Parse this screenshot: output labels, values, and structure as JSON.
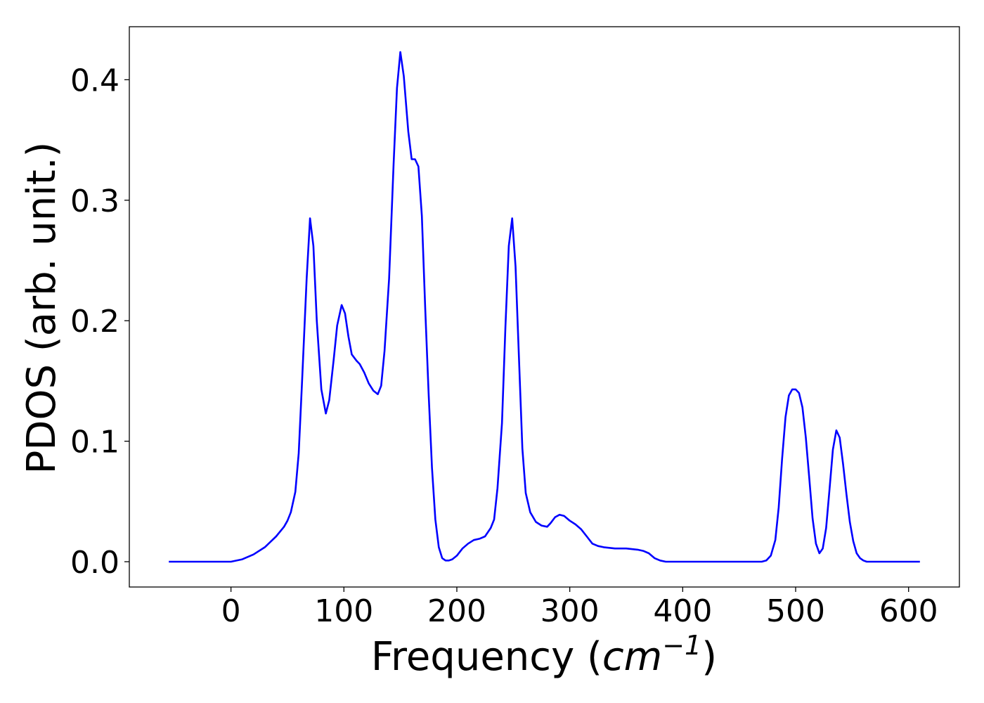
{
  "chart_data": {
    "type": "line",
    "xlabel": "Frequency",
    "xlabel_unit": "cm",
    "xlabel_unit_exponent": "−1",
    "ylabel": "PDOS (arb. unit.)",
    "xlim": [
      -90,
      645
    ],
    "ylim": [
      -0.021,
      0.444
    ],
    "xticks": [
      0,
      100,
      200,
      300,
      400,
      500,
      600
    ],
    "xtick_labels": [
      "0",
      "100",
      "200",
      "300",
      "400",
      "500",
      "600"
    ],
    "yticks": [
      0.0,
      0.1,
      0.2,
      0.3,
      0.4
    ],
    "ytick_labels": [
      "0.0",
      "0.1",
      "0.2",
      "0.3",
      "0.4"
    ],
    "grid": false,
    "series": [
      {
        "color": "#0000ff",
        "x": [
          -55,
          -30,
          0,
          10,
          20,
          30,
          40,
          47,
          50,
          53,
          57,
          60,
          63,
          67,
          70,
          73,
          76,
          80,
          84,
          87,
          91,
          94,
          98,
          101,
          104,
          107,
          111,
          114,
          118,
          122,
          126,
          130,
          133,
          136,
          140,
          144,
          147,
          150,
          153,
          157,
          160,
          163,
          166,
          169,
          172,
          175,
          178,
          181,
          184,
          187,
          190,
          193,
          196,
          200,
          205,
          210,
          215,
          220,
          225,
          230,
          233,
          236,
          240,
          243,
          246,
          249,
          252,
          255,
          258,
          261,
          265,
          270,
          275,
          280,
          283,
          287,
          291,
          295,
          300,
          305,
          310,
          315,
          320,
          325,
          330,
          340,
          350,
          360,
          365,
          370,
          375,
          380,
          385,
          390,
          400,
          450,
          470,
          474,
          478,
          482,
          485,
          488,
          491,
          494,
          497,
          500,
          503,
          506,
          509,
          512,
          515,
          518,
          521,
          524,
          527,
          530,
          533,
          536,
          539,
          542,
          545,
          548,
          551,
          554,
          557,
          560,
          563,
          567,
          575,
          610
        ],
        "y": [
          0.0,
          0.0,
          0.0,
          0.002,
          0.006,
          0.012,
          0.021,
          0.029,
          0.034,
          0.041,
          0.058,
          0.09,
          0.15,
          0.235,
          0.285,
          0.262,
          0.2,
          0.143,
          0.123,
          0.134,
          0.168,
          0.196,
          0.213,
          0.206,
          0.187,
          0.172,
          0.167,
          0.164,
          0.157,
          0.148,
          0.142,
          0.139,
          0.146,
          0.175,
          0.235,
          0.33,
          0.393,
          0.423,
          0.403,
          0.357,
          0.334,
          0.334,
          0.328,
          0.287,
          0.21,
          0.14,
          0.078,
          0.035,
          0.012,
          0.003,
          0.001,
          0.001,
          0.002,
          0.005,
          0.011,
          0.015,
          0.018,
          0.019,
          0.021,
          0.028,
          0.035,
          0.061,
          0.115,
          0.195,
          0.262,
          0.285,
          0.245,
          0.17,
          0.094,
          0.057,
          0.041,
          0.033,
          0.03,
          0.029,
          0.032,
          0.037,
          0.039,
          0.038,
          0.034,
          0.031,
          0.027,
          0.021,
          0.015,
          0.013,
          0.012,
          0.011,
          0.011,
          0.01,
          0.009,
          0.007,
          0.003,
          0.001,
          0.0,
          0.0,
          0.0,
          0.0,
          0.0,
          0.001,
          0.005,
          0.018,
          0.045,
          0.085,
          0.12,
          0.138,
          0.143,
          0.143,
          0.14,
          0.128,
          0.103,
          0.07,
          0.036,
          0.015,
          0.007,
          0.011,
          0.028,
          0.06,
          0.093,
          0.109,
          0.103,
          0.081,
          0.056,
          0.033,
          0.017,
          0.007,
          0.003,
          0.001,
          0.0,
          0.0,
          0.0,
          0.0
        ]
      }
    ]
  }
}
